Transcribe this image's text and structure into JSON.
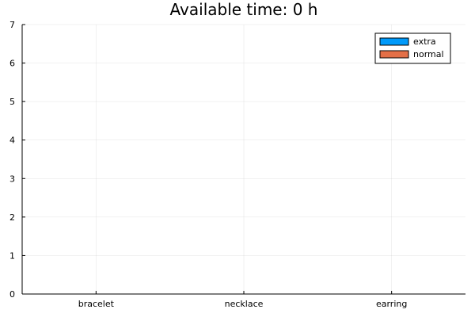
{
  "chart_data": {
    "type": "bar",
    "title": "Available time: 0 h",
    "categories": [
      "bracelet",
      "necklace",
      "earring"
    ],
    "series": [
      {
        "name": "extra",
        "values": [
          0,
          0,
          0
        ],
        "color": "#009AFA"
      },
      {
        "name": "normal",
        "values": [
          0,
          0,
          0
        ],
        "color": "#E36F47"
      }
    ],
    "stacked": true,
    "ylim": [
      0,
      7
    ],
    "yticks": [
      "0",
      "1",
      "2",
      "3",
      "4",
      "5",
      "6",
      "7"
    ],
    "grid": true,
    "legend_position": "top-right"
  }
}
